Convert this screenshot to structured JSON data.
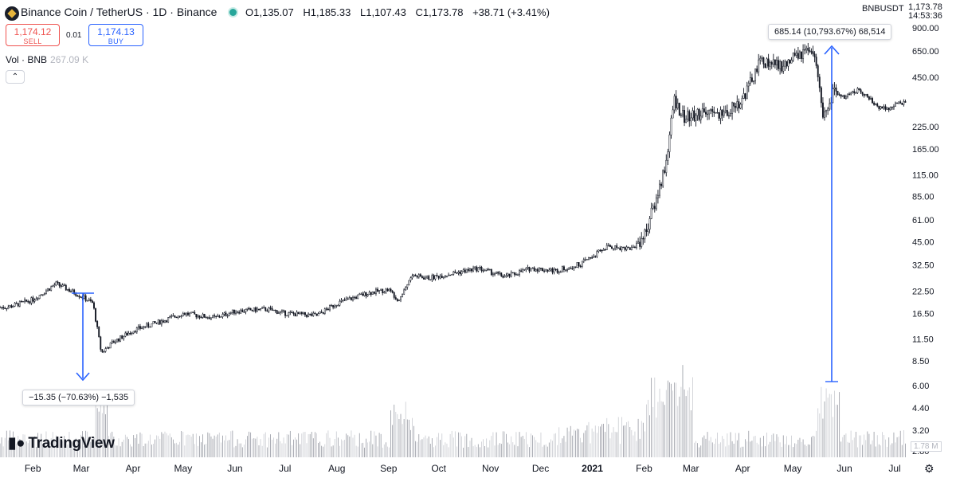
{
  "header": {
    "title": "Binance Coin / TetherUS · 1D · Binance",
    "ohlc": {
      "o_label": "O",
      "o": "1,135.07",
      "h_label": "H",
      "h": "1,185.33",
      "l_label": "L",
      "l": "1,107.43",
      "c_label": "C",
      "c": "1,173.78",
      "change": "+38.71 (+3.41%)"
    },
    "pair_code": "BNBUSDT",
    "last_price": "1,173.78",
    "countdown": "14:53:36"
  },
  "trade": {
    "sell_price": "1,174.12",
    "sell_label": "SELL",
    "spread": "0.01",
    "buy_price": "1,174.13",
    "buy_label": "BUY"
  },
  "volume": {
    "label": "Vol · BNB",
    "value": "267.09 K",
    "last_tag": "1.78 M"
  },
  "annotations": {
    "drop": "−15.35 (−70.63%) −1,535",
    "rise": "685.14 (10,793.67%) 68,514"
  },
  "brand": {
    "name": "TradingView"
  },
  "icons": {
    "coin": "bnb-coin-icon",
    "collapse": "chevron-up-icon",
    "settings": "gear-icon",
    "live": "live-dot-icon"
  },
  "colors": {
    "sell": "#ef5350",
    "buy": "#2962ff",
    "measure": "#2962ff",
    "candle": "#131722"
  },
  "chart_data": {
    "type": "candlestick",
    "scale": "log",
    "y_ticks": [
      "900.00",
      "650.00",
      "450.00",
      "225.00",
      "165.00",
      "115.00",
      "85.00",
      "61.00",
      "45.00",
      "32.50",
      "22.50",
      "16.50",
      "11.50",
      "8.50",
      "6.00",
      "4.40",
      "3.20",
      "2.80"
    ],
    "x_ticks": [
      "Feb",
      "Mar",
      "Apr",
      "May",
      "Jun",
      "Jul",
      "Aug",
      "Sep",
      "Oct",
      "Nov",
      "Dec",
      "2021",
      "Feb",
      "Mar",
      "Apr",
      "May",
      "Jun",
      "Jul"
    ],
    "close_path": [
      [
        "2020-01-17",
        18
      ],
      [
        "2020-02-01",
        20
      ],
      [
        "2020-02-15",
        25
      ],
      [
        "2020-03-01",
        21
      ],
      [
        "2020-03-08",
        19
      ],
      [
        "2020-03-13",
        9.5
      ],
      [
        "2020-03-20",
        11
      ],
      [
        "2020-04-01",
        13
      ],
      [
        "2020-04-20",
        15
      ],
      [
        "2020-05-01",
        16.5
      ],
      [
        "2020-05-20",
        15.5
      ],
      [
        "2020-06-01",
        17
      ],
      [
        "2020-06-20",
        17.5
      ],
      [
        "2020-07-01",
        16.5
      ],
      [
        "2020-07-20",
        16
      ],
      [
        "2020-08-01",
        19
      ],
      [
        "2020-08-20",
        22
      ],
      [
        "2020-09-01",
        23
      ],
      [
        "2020-09-07",
        20
      ],
      [
        "2020-09-15",
        28
      ],
      [
        "2020-09-25",
        27
      ],
      [
        "2020-10-10",
        29
      ],
      [
        "2020-10-25",
        31
      ],
      [
        "2020-11-10",
        27.5
      ],
      [
        "2020-11-25",
        31
      ],
      [
        "2020-12-10",
        30
      ],
      [
        "2020-12-25",
        33
      ],
      [
        "2021-01-10",
        42
      ],
      [
        "2021-01-25",
        41
      ],
      [
        "2021-02-01",
        49
      ],
      [
        "2021-02-08",
        80
      ],
      [
        "2021-02-14",
        135
      ],
      [
        "2021-02-19",
        330
      ],
      [
        "2021-02-25",
        255
      ],
      [
        "2021-03-10",
        270
      ],
      [
        "2021-03-20",
        265
      ],
      [
        "2021-04-01",
        330
      ],
      [
        "2021-04-12",
        570
      ],
      [
        "2021-04-25",
        520
      ],
      [
        "2021-05-03",
        600
      ],
      [
        "2021-05-10",
        640
      ],
      [
        "2021-05-15",
        560
      ],
      [
        "2021-05-19",
        265
      ],
      [
        "2021-05-25",
        360
      ],
      [
        "2021-06-01",
        345
      ],
      [
        "2021-06-10",
        380
      ],
      [
        "2021-06-20",
        300
      ],
      [
        "2021-06-28",
        295
      ],
      [
        "2021-07-07",
        320
      ]
    ],
    "measures": [
      {
        "label": "−15.35 (−70.63%) −1,535"
      },
      {
        "label": "685.14 (10,793.67%) 68,514"
      }
    ]
  }
}
